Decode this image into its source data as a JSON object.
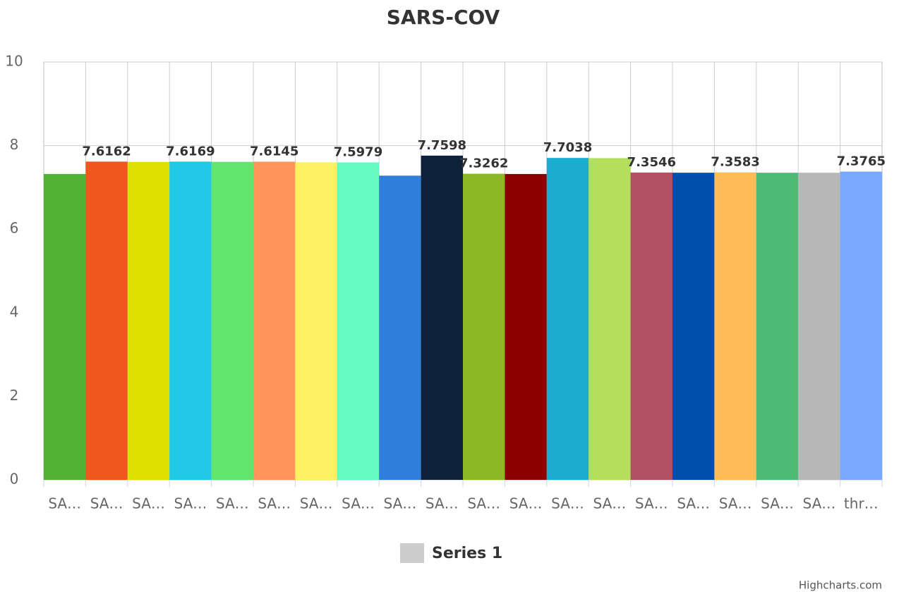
{
  "chart_data": {
    "type": "bar",
    "title": "SARS-COV",
    "categories": [
      "SA…",
      "SA…",
      "SA…",
      "SA…",
      "SA…",
      "SA…",
      "SA…",
      "SA…",
      "SA…",
      "SA…",
      "SA…",
      "SA…",
      "SA…",
      "SA…",
      "SA…",
      "SA…",
      "SA…",
      "SA…",
      "SA…",
      "thr…"
    ],
    "series": [
      {
        "name": "Series 1",
        "color": "#cccccc",
        "values": [
          7.32,
          7.6162,
          7.61,
          7.6169,
          7.61,
          7.6145,
          7.6,
          7.5979,
          7.28,
          7.7598,
          7.3262,
          7.32,
          7.7038,
          7.7,
          7.3546,
          7.35,
          7.3583,
          7.35,
          7.35,
          7.3765
        ],
        "value_labels": [
          null,
          "7.6162",
          null,
          "7.6169",
          null,
          "7.6145",
          null,
          "7.5979",
          null,
          "7.7598",
          "7.3262",
          null,
          "7.7038",
          null,
          "7.3546",
          null,
          "7.3583",
          null,
          null,
          "7.3765"
        ],
        "colors": [
          "#4fb233",
          "#ef581c",
          "#dde000",
          "#22c9e6",
          "#62e56c",
          "#ff9558",
          "#fff062",
          "#66fac3",
          "#2f7fdb",
          "#0d223a",
          "#8ab924",
          "#8c0000",
          "#1aadcf",
          "#b3df5c",
          "#b34f63",
          "#004fac",
          "#ffbb55",
          "#4dba76",
          "#b7b7b7",
          "#7ba9ff"
        ]
      }
    ],
    "ylim": [
      0,
      10
    ],
    "yticks": [
      0,
      2,
      4,
      6,
      8,
      10
    ],
    "grid": true,
    "credit": "Highcharts.com"
  }
}
